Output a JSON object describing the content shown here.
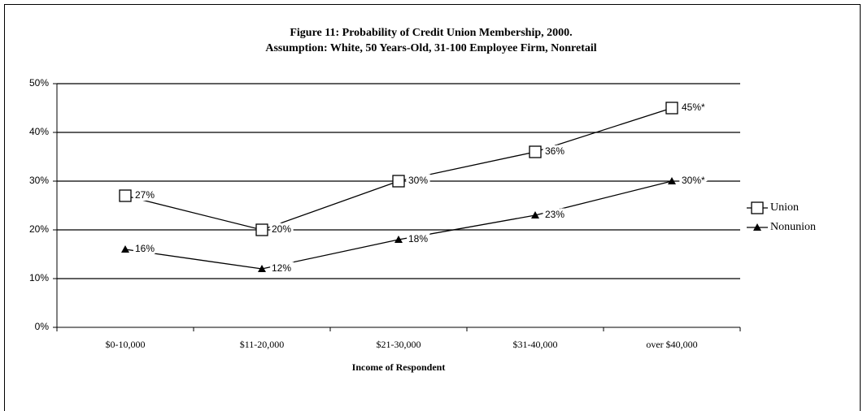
{
  "chart_data": {
    "type": "line",
    "title": "Figure 11: Probability of Credit Union Membership, 2000.",
    "subtitle": "Assumption: White, 50 Years-Old, 31-100 Employee Firm, Nonretail",
    "xlabel": "Income of Respondent",
    "categories": [
      "$0-10,000",
      "$11-20,000",
      "$21-30,000",
      "$31-40,000",
      "over $40,000"
    ],
    "series": [
      {
        "name": "Union",
        "color": "#000000",
        "marker": "square",
        "values": [
          27,
          20,
          30,
          36,
          45
        ],
        "value_labels": [
          "27%",
          "20%",
          "30%",
          "36%",
          "45%*"
        ]
      },
      {
        "name": "Nonunion",
        "color": "#000000",
        "marker": "triangle",
        "values": [
          16,
          12,
          18,
          23,
          30
        ],
        "value_labels": [
          "16%",
          "12%",
          "18%",
          "23%",
          "30%*"
        ]
      }
    ],
    "ylim": [
      0,
      50
    ],
    "yticks": [
      {
        "value": 0,
        "label": "0%"
      },
      {
        "value": 10,
        "label": "10%"
      },
      {
        "value": 20,
        "label": "20%"
      },
      {
        "value": 30,
        "label": "30%"
      },
      {
        "value": 40,
        "label": "40%"
      },
      {
        "value": 50,
        "label": "50%"
      }
    ],
    "grid": true,
    "legend": "right"
  }
}
